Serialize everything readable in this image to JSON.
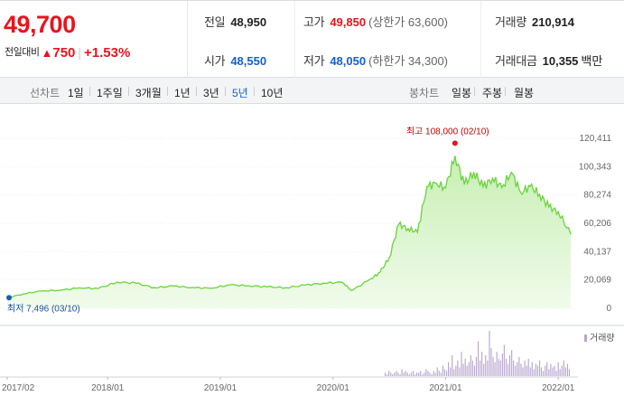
{
  "summary": {
    "current_price": "49,700",
    "change_label": "전일대비",
    "change_value": "750",
    "change_pct": "+1.53%",
    "stats": {
      "prev_close": {
        "label": "전일",
        "value": "48,950"
      },
      "high": {
        "label": "고가",
        "value": "49,850",
        "sub": "(상한가 63,600)"
      },
      "volume": {
        "label": "거래량",
        "value": "210,914"
      },
      "open": {
        "label": "시가",
        "value": "48,550"
      },
      "low": {
        "label": "저가",
        "value": "48,050",
        "sub": "(하한가 34,300)"
      },
      "trade_amount": {
        "label": "거래대금",
        "value": "10,355",
        "unit": "백만"
      }
    }
  },
  "toolbar": {
    "line_label": "선차트",
    "periods": [
      "1일",
      "1주일",
      "3개월",
      "1년",
      "3년",
      "5년",
      "10년"
    ],
    "active_period": "5년",
    "candle_label": "봉차트",
    "candles": [
      "일봉",
      "주봉",
      "월봉"
    ]
  },
  "colors": {
    "up": "#e8141e",
    "down": "#1062d1",
    "line": "#6bd33f",
    "area": "#dcf5cf",
    "volume": "#b7a6cf"
  },
  "chart_data": {
    "type": "area",
    "y_ticks": [
      "120,411",
      "100,343",
      "80,274",
      "60,206",
      "40,137",
      "20,069",
      "0"
    ],
    "ylim": [
      0,
      120411
    ],
    "x_ticks": [
      "2017/02",
      "2018/01",
      "2019/01",
      "2020/01",
      "2021/01",
      "2022/01"
    ],
    "max_annotation": "최고 108,000 (02/10)",
    "min_annotation": "최저 7,496 (03/10)",
    "volume_legend": "거래량",
    "series": [
      {
        "x": [
          "2017/02",
          "2017/04",
          "2017/06",
          "2017/08",
          "2017/10",
          "2017/12",
          "2018/02",
          "2018/04",
          "2018/06",
          "2018/08",
          "2018/10",
          "2018/12",
          "2019/02",
          "2019/04",
          "2019/06",
          "2019/08",
          "2019/10",
          "2019/12",
          "2020/02",
          "2020/03",
          "2020/05",
          "2020/06",
          "2020/07",
          "2020/08",
          "2020/09",
          "2020/10",
          "2020/11",
          "2020/12",
          "2021/01",
          "2021/02",
          "2021/03",
          "2021/04",
          "2021/05",
          "2021/06",
          "2021/07",
          "2021/08",
          "2021/09",
          "2021/10",
          "2021/11",
          "2021/12",
          "2022/01",
          "2022/02"
        ],
        "values": [
          7496,
          10200,
          12300,
          12800,
          14500,
          14000,
          18600,
          17800,
          14600,
          15800,
          14700,
          14200,
          16600,
          16000,
          15200,
          14600,
          16400,
          17800,
          18400,
          12500,
          20800,
          25400,
          36000,
          59500,
          56500,
          53800,
          86200,
          88500,
          85200,
          108000,
          87600,
          96500,
          86000,
          92100,
          85500,
          96400,
          82000,
          86300,
          80800,
          71800,
          68400,
          52300
        ]
      }
    ],
    "volume": [
      2,
      1,
      3,
      2,
      1,
      2,
      3,
      2,
      1,
      4,
      2,
      3,
      2,
      1,
      2,
      3,
      1,
      2,
      2,
      3,
      1,
      2,
      4,
      3,
      2,
      1,
      3,
      2,
      5,
      3,
      2,
      6,
      4,
      3,
      8,
      5,
      12,
      4,
      6,
      9,
      5,
      14,
      7,
      10,
      6,
      8,
      12,
      9,
      6,
      11,
      20,
      9,
      14,
      7,
      12,
      9,
      26,
      16,
      11,
      8,
      14,
      10,
      9,
      13,
      18,
      10,
      7,
      12,
      15,
      9,
      6,
      8,
      11,
      7,
      5,
      9,
      6,
      10,
      5,
      8,
      4,
      7,
      6,
      9,
      5,
      3,
      6,
      8,
      4,
      7,
      5,
      6,
      3,
      8,
      4,
      6,
      9,
      5,
      7,
      4
    ]
  }
}
